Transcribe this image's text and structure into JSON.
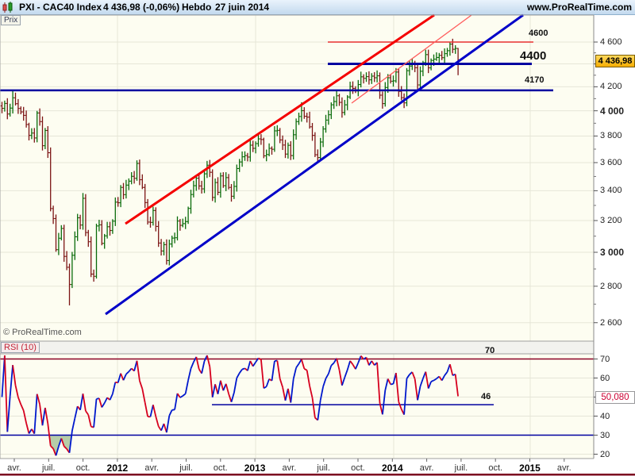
{
  "title_bar": {
    "instrument": "PXI - CAC40 Index",
    "quote": "4 436,98 (-0,06%)",
    "timeframe": "Hebdo",
    "date": "27 juin 2014",
    "site": "www.ProRealTime.com"
  },
  "price_panel": {
    "tab": "Prix",
    "watermark": "© ProRealTime.com",
    "annotations": {
      "r4600": "4600",
      "r4400": "4400",
      "r4170": "4170"
    },
    "last_price_badge": "4 436,98",
    "axis": {
      "labels": [
        "4 600",
        "4 400",
        "4 200",
        "4 000",
        "3 800",
        "3 600",
        "3 400",
        "3 200",
        "3 000",
        "2 800",
        "2 600"
      ],
      "values": [
        4600,
        4400,
        4200,
        4000,
        3800,
        3600,
        3400,
        3200,
        3000,
        2800,
        2600
      ],
      "bold_values": [
        4000,
        3000
      ]
    }
  },
  "rsi_panel": {
    "tab": "RSI (10)",
    "badge": "50,080",
    "level_labels": {
      "upper": "70",
      "support": "46"
    },
    "axis": {
      "labels": [
        "70",
        "60",
        "40",
        "30",
        "20"
      ],
      "values": [
        70,
        60,
        40,
        30,
        20
      ]
    }
  },
  "x_axis": {
    "labels": [
      "avr.",
      "juil.",
      "oct.",
      "2012",
      "avr.",
      "juil.",
      "oct.",
      "2013",
      "avr.",
      "juil.",
      "oct.",
      "2014",
      "avr.",
      "juil.",
      "oct.",
      "2015",
      "avr."
    ],
    "year_indices": [
      3,
      7,
      11,
      15
    ]
  },
  "chart_data": {
    "type": "bar",
    "subtype": "ohlc-weekly",
    "title": "PXI - CAC40 Index, Hebdo, 27 juin 2014",
    "scale": "logarithmic",
    "last_close": 4436.98,
    "change_pct": -0.06,
    "ylim": [
      2504,
      4860
    ],
    "y_axis_ticks": [
      4600,
      4400,
      4200,
      4000,
      3800,
      3600,
      3400,
      3200,
      3000,
      2800,
      2600
    ],
    "x_tick_labels": [
      "avr.",
      "juil.",
      "oct.",
      "2012",
      "avr.",
      "juil.",
      "oct.",
      "2013",
      "avr.",
      "juil.",
      "oct.",
      "2014",
      "avr.",
      "juil.",
      "oct.",
      "2015",
      "avr."
    ],
    "price_levels": {
      "resistance": 4600,
      "broken_resistance": 4400,
      "support": 4170
    },
    "first_open": 4040,
    "weekly_closes": [
      4020,
      4060,
      3974,
      4022,
      4107,
      4058,
      4019,
      3991,
      3963,
      3890,
      3805,
      3823,
      3785,
      3982,
      3913,
      3726,
      3843,
      3673,
      3279,
      3213,
      3016,
      3087,
      3149,
      2975,
      2910,
      2810,
      2982,
      3096,
      3218,
      3171,
      3348,
      3123,
      3065,
      2870,
      2857,
      3165,
      3172,
      3055,
      3102,
      3160,
      3136,
      3196,
      3322,
      3318,
      3423,
      3373,
      3439,
      3467,
      3501,
      3487,
      3594,
      3477,
      3423,
      3319,
      3190,
      3188,
      3266,
      3162,
      3057,
      3008,
      3047,
      2950,
      3051,
      3088,
      3090,
      3197,
      3169,
      3180,
      3193,
      3280,
      3374,
      3435,
      3488,
      3433,
      3413,
      3519,
      3581,
      3530,
      3354,
      3457,
      3389,
      3504,
      3435,
      3492,
      3423,
      3362,
      3430,
      3557,
      3605,
      3643,
      3652,
      3641,
      3730,
      3706,
      3742,
      3778,
      3773,
      3650,
      3660,
      3706,
      3699,
      3840,
      3844,
      3770,
      3731,
      3663,
      3729,
      3652,
      3810,
      3913,
      3954,
      4001,
      3956,
      3949,
      3872,
      3805,
      3658,
      3637,
      3754,
      3855,
      3925,
      3968,
      4049,
      4076,
      4124,
      4069,
      3986,
      4049,
      4114,
      4203,
      4186,
      4165,
      4219,
      4286,
      4273,
      4288,
      4260,
      4292,
      4278,
      4295,
      4129,
      4059,
      4194,
      4278,
      4248,
      4251,
      4328,
      4161,
      4108,
      4065,
      4340,
      4381,
      4408,
      4366,
      4216,
      4335,
      4411,
      4484,
      4365,
      4431,
      4443,
      4458,
      4477,
      4456,
      4493,
      4520,
      4581,
      4533,
      4541,
      4437
    ],
    "wick_overrides": {
      "4": {
        "high": 4169
      },
      "25": {
        "low": 2693
      },
      "111": {
        "high": 4070
      },
      "117": {
        "low": 3595
      },
      "166": {
        "high": 4601
      },
      "169": {
        "high": 4545,
        "low": 4300
      }
    },
    "rsi": {
      "period": 10,
      "overbought": 70,
      "oversold": 30,
      "trend_support": 46,
      "last_value": 50.08
    },
    "colors": {
      "up_bar": "#0a6b0a",
      "down_bar": "#7c1414",
      "trend_red": "#f40000",
      "trend_red_thin": "#ff5c5c",
      "trend_blue": "#0000c8",
      "level_blue": "#0000a0",
      "level_red": "#e83030",
      "rsi_up": "#0018cc",
      "rsi_down": "#d6001e",
      "rsi_overbought_line": "#8b0024",
      "rsi_oversold_line": "#0000a0",
      "oversold_fill": "#a4c096",
      "price_badge_bg": "#ffc41e",
      "rsi_badge_text": "#cc0033",
      "plot_bg": "#fdfdf1",
      "grid": "#e6e6d8"
    }
  }
}
